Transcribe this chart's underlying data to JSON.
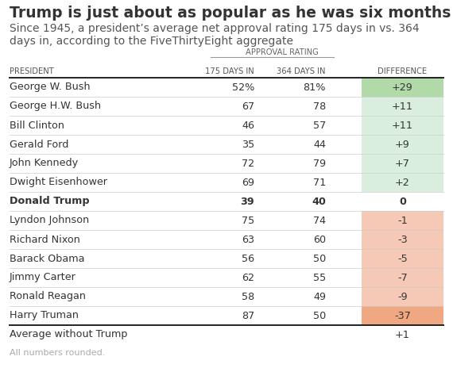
{
  "title": "Trump is just about as popular as he was six months ago",
  "subtitle": "Since 1945, a president’s average net approval rating 175 days in vs. 364\ndays in, according to the FiveThirtyEight aggregate",
  "col_headers": [
    "PRESIDENT",
    "175 DAYS IN",
    "364 DAYS IN",
    "DIFFERENCE"
  ],
  "approval_label": "APPROVAL RATING",
  "rows": [
    {
      "name": "George W. Bush",
      "d175": "52%",
      "d364": "81%",
      "diff": "+29",
      "bold": false,
      "diff_val": 29
    },
    {
      "name": "George H.W. Bush",
      "d175": "67",
      "d364": "78",
      "diff": "+11",
      "bold": false,
      "diff_val": 11
    },
    {
      "name": "Bill Clinton",
      "d175": "46",
      "d364": "57",
      "diff": "+11",
      "bold": false,
      "diff_val": 11
    },
    {
      "name": "Gerald Ford",
      "d175": "35",
      "d364": "44",
      "diff": "+9",
      "bold": false,
      "diff_val": 9
    },
    {
      "name": "John Kennedy",
      "d175": "72",
      "d364": "79",
      "diff": "+7",
      "bold": false,
      "diff_val": 7
    },
    {
      "name": "Dwight Eisenhower",
      "d175": "69",
      "d364": "71",
      "diff": "+2",
      "bold": false,
      "diff_val": 2
    },
    {
      "name": "Donald Trump",
      "d175": "39",
      "d364": "40",
      "diff": "0",
      "bold": true,
      "diff_val": 0
    },
    {
      "name": "Lyndon Johnson",
      "d175": "75",
      "d364": "74",
      "diff": "-1",
      "bold": false,
      "diff_val": -1
    },
    {
      "name": "Richard Nixon",
      "d175": "63",
      "d364": "60",
      "diff": "-3",
      "bold": false,
      "diff_val": -3
    },
    {
      "name": "Barack Obama",
      "d175": "56",
      "d364": "50",
      "diff": "-5",
      "bold": false,
      "diff_val": -5
    },
    {
      "name": "Jimmy Carter",
      "d175": "62",
      "d364": "55",
      "diff": "-7",
      "bold": false,
      "diff_val": -7
    },
    {
      "name": "Ronald Reagan",
      "d175": "58",
      "d364": "49",
      "diff": "-9",
      "bold": false,
      "diff_val": -9
    },
    {
      "name": "Harry Truman",
      "d175": "87",
      "d364": "50",
      "diff": "-37",
      "bold": false,
      "diff_val": -37
    }
  ],
  "footer_row": {
    "name": "Average without Trump",
    "diff": "+1"
  },
  "footnote": "All numbers rounded.",
  "color_positive_strong": "#b2d9a8",
  "color_positive_light": "#daeedd",
  "color_negative_light": "#f5c9b5",
  "color_negative_strong": "#f0a882",
  "color_zero": "#ffffff",
  "bg_color": "#ffffff",
  "text_color": "#333333",
  "header_line_color": "#222222",
  "row_line_color": "#cccccc",
  "title_fontsize": 13.5,
  "subtitle_fontsize": 10,
  "table_fontsize": 9.2
}
